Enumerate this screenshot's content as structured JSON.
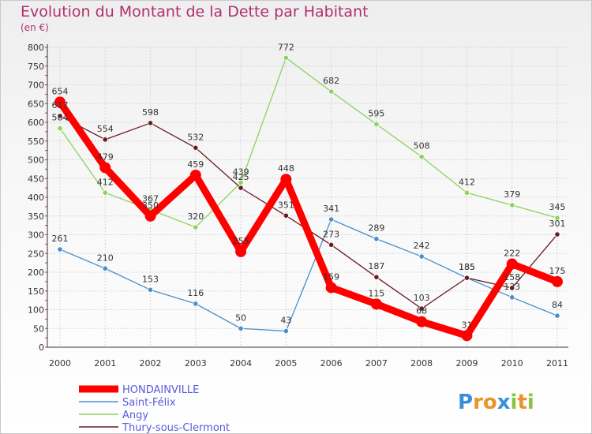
{
  "header": {
    "title": "Evolution du Montant de la Dette par Habitant",
    "subtitle": "(en €)"
  },
  "brand": {
    "logo_text": "Proxiti"
  },
  "chart_data": {
    "type": "line",
    "title": "Evolution du Montant de la Dette par Habitant",
    "subtitle": "(en €)",
    "xlabel": "",
    "ylabel": "",
    "x": [
      "2000",
      "2001",
      "2002",
      "2003",
      "2004",
      "2005",
      "2006",
      "2007",
      "2008",
      "2009",
      "2010",
      "2011"
    ],
    "ylim": [
      0,
      800
    ],
    "yticks": [
      0,
      50,
      100,
      150,
      200,
      250,
      300,
      350,
      400,
      450,
      500,
      550,
      600,
      650,
      700,
      750,
      800
    ],
    "grid": true,
    "legend_position": "bottom-left",
    "series": [
      {
        "name": "HONDAINVILLE",
        "color": "#ff0000",
        "values": [
          654,
          479,
          350,
          459,
          255,
          448,
          159,
          115,
          68,
          31,
          222,
          175
        ]
      },
      {
        "name": "Saint-Félix",
        "color": "#4a8fc8",
        "values": [
          261,
          210,
          153,
          116,
          50,
          43,
          341,
          289,
          242,
          185,
          133,
          84
        ]
      },
      {
        "name": "Angy",
        "color": "#8bd35a",
        "values": [
          584,
          412,
          367,
          320,
          439,
          772,
          682,
          595,
          508,
          412,
          379,
          345
        ]
      },
      {
        "name": "Thury-sous-Clermont",
        "color": "#6b1a22",
        "values": [
          617,
          554,
          598,
          532,
          425,
          351,
          273,
          187,
          103,
          185,
          158,
          301
        ]
      }
    ]
  }
}
